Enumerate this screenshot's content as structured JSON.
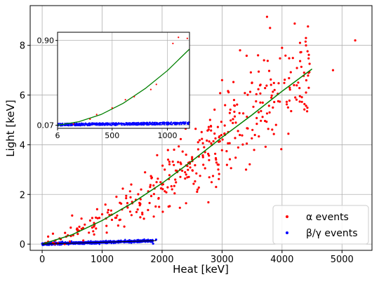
{
  "chart_data": {
    "type": "scatter",
    "xlabel": "Heat [keV]",
    "ylabel": "Light [keV]",
    "xlim": [
      -200,
      5500
    ],
    "ylim": [
      -0.25,
      9.6
    ],
    "xticks": [
      0,
      1000,
      2000,
      3000,
      4000,
      5000
    ],
    "yticks": [
      0,
      2,
      4,
      6,
      8
    ],
    "grid": true,
    "legend_position": "bottom-right",
    "series": [
      {
        "name": "α events",
        "color": "#ff0000",
        "marker": "dot",
        "sample_points": [
          [
            100,
            0.1
          ],
          [
            180,
            0.42
          ],
          [
            220,
            0.15
          ],
          [
            400,
            0.3
          ],
          [
            500,
            1.15
          ],
          [
            620,
            0.7
          ],
          [
            800,
            0.95
          ],
          [
            1000,
            1.2
          ],
          [
            1150,
            1.35
          ],
          [
            1400,
            1.85
          ],
          [
            1500,
            1.7
          ],
          [
            1650,
            2.2
          ],
          [
            1800,
            2.3
          ],
          [
            1950,
            1.5
          ],
          [
            2000,
            2.4
          ],
          [
            2100,
            3.4
          ],
          [
            2200,
            3.8
          ],
          [
            2300,
            3.0
          ],
          [
            2400,
            3.6
          ],
          [
            2500,
            3.5
          ],
          [
            2600,
            4.1
          ],
          [
            2700,
            3.9
          ],
          [
            2800,
            5.0
          ],
          [
            2900,
            2.3
          ],
          [
            2950,
            4.3
          ],
          [
            3000,
            6.6
          ],
          [
            3050,
            4.4
          ],
          [
            3200,
            5.8
          ],
          [
            3300,
            7.8
          ],
          [
            3400,
            3.0
          ],
          [
            3500,
            6.5
          ],
          [
            3600,
            7.6
          ],
          [
            3700,
            7.4
          ],
          [
            3750,
            9.15
          ],
          [
            3800,
            8.7
          ],
          [
            3900,
            4.8
          ],
          [
            4000,
            7.9
          ],
          [
            4100,
            5.5
          ],
          [
            4200,
            6.4
          ],
          [
            4300,
            8.1
          ],
          [
            4400,
            6.1
          ],
          [
            4850,
            7.0
          ],
          [
            5220,
            8.2
          ]
        ]
      },
      {
        "name": "β/γ events",
        "color": "#0000ff",
        "marker": "dot",
        "sample_points": [
          [
            0,
            0.02
          ],
          [
            200,
            0.03
          ],
          [
            400,
            0.05
          ],
          [
            600,
            0.05
          ],
          [
            800,
            0.06
          ],
          [
            1000,
            0.07
          ],
          [
            1200,
            0.08
          ],
          [
            1400,
            0.09
          ],
          [
            1600,
            0.1
          ],
          [
            1800,
            0.12
          ],
          [
            1900,
            0.18
          ],
          [
            1850,
            0.02
          ]
        ]
      }
    ],
    "fits": [
      {
        "color": "#008000",
        "x": [
          0,
          500,
          1000,
          1500,
          2000,
          2500,
          3000,
          3500,
          4000,
          4500
        ],
        "y": [
          0.0,
          0.38,
          0.95,
          1.65,
          2.45,
          3.35,
          4.3,
          5.2,
          6.15,
          7.05
        ]
      },
      {
        "color": "#000000",
        "x": [
          0,
          1900
        ],
        "y": [
          0.0,
          0.14
        ]
      }
    ],
    "inset": {
      "xticks": [
        6,
        500,
        1000
      ],
      "yticks": [
        0.07,
        0.9
      ],
      "xlim": [
        6,
        1200
      ],
      "ylim": [
        0.04,
        0.98
      ],
      "fit": {
        "color": "#008000",
        "x": [
          6,
          200,
          400,
          600,
          800,
          1000,
          1200
        ],
        "y": [
          0.07,
          0.105,
          0.175,
          0.285,
          0.43,
          0.605,
          0.815
        ]
      },
      "red_points": [
        [
          150,
          0.082
        ],
        [
          300,
          0.13
        ],
        [
          360,
          0.175
        ],
        [
          500,
          0.24
        ],
        [
          620,
          0.32
        ],
        [
          700,
          0.35
        ],
        [
          850,
          0.42
        ],
        [
          900,
          0.47
        ],
        [
          1050,
          0.87
        ],
        [
          1100,
          0.93
        ],
        [
          1180,
          0.92
        ]
      ],
      "blue_band": {
        "x0": 6,
        "x1": 1200,
        "y0": 0.05,
        "y1": 0.1
      }
    }
  }
}
